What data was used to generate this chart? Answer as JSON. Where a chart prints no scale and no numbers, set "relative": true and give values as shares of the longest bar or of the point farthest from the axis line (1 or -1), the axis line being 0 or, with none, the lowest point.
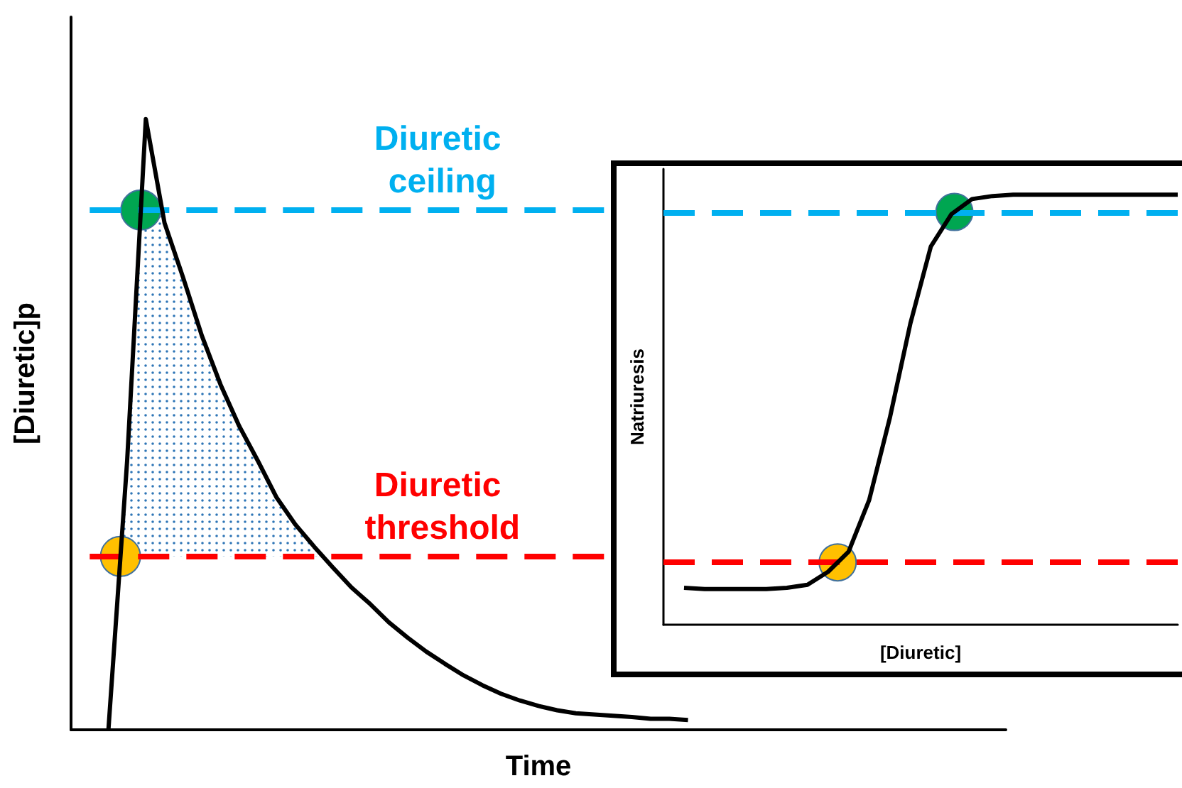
{
  "chart_data": [
    {
      "type": "line",
      "xlabel": "Time",
      "ylabel": "[Diuretic]p",
      "relative": true,
      "grid": false,
      "legend": false,
      "categories": [
        null,
        null,
        null,
        null,
        null,
        null,
        null,
        null,
        null,
        null,
        null,
        null,
        null,
        null,
        null,
        null,
        null,
        null,
        null,
        null,
        null,
        null,
        null,
        null,
        null,
        null,
        null,
        null,
        null,
        null,
        null,
        null,
        null,
        null,
        null,
        null,
        null,
        null,
        null,
        null,
        null,
        null,
        null,
        null,
        null,
        null,
        null,
        null,
        null,
        null,
        null
      ],
      "series": [
        {
          "color": "#000000",
          "values": [
            null,
            null,
            0,
            0.44,
            1,
            0.83,
            0.74,
            0.645,
            0.565,
            0.497,
            0.44,
            0.38,
            0.336,
            0.3,
            0.266,
            0.233,
            0.206,
            0.176,
            0.151,
            0.128,
            0.108,
            0.089,
            0.073,
            0.059,
            0.048,
            0.039,
            0.032,
            0.027,
            0.025,
            0.023,
            0.021,
            0.018,
            0.018,
            0.016,
            null,
            null,
            null,
            null,
            null,
            null,
            null,
            null,
            null,
            null,
            null,
            null,
            null,
            null,
            null,
            null,
            null
          ]
        }
      ],
      "ref_lines": [
        {
          "axis": "y",
          "value": 0.851,
          "label": "Diuretic ceiling",
          "color": "#00b0f0",
          "line_style": "dashed"
        },
        {
          "axis": "y",
          "value": 0.284,
          "label": "Diuretic threshold",
          "color": "#ff0000",
          "line_style": "dashed"
        }
      ]
    },
    {
      "type": "line",
      "xlabel": "[Diuretic]",
      "ylabel": "Natriuresis",
      "relative": true,
      "grid": false,
      "legend": false,
      "categories": [
        null,
        null,
        null,
        null,
        null,
        null,
        null,
        null,
        null,
        null,
        null,
        null,
        null,
        null,
        null,
        null,
        null,
        null,
        null,
        null,
        null,
        null,
        null,
        null,
        null,
        null
      ],
      "series": [
        {
          "color": "#000000",
          "values": [
            null,
            0.086,
            0.083,
            0.083,
            0.083,
            0.083,
            0.086,
            0.093,
            0.123,
            0.17,
            0.29,
            0.48,
            0.7,
            0.88,
            0.955,
            0.99,
            0.997,
            1,
            1,
            1,
            1,
            1,
            1,
            1,
            1,
            1
          ]
        }
      ],
      "ref_lines": [
        {
          "axis": "y",
          "value": 0.96,
          "color": "#00b0f0",
          "line_style": "dashed"
        },
        {
          "axis": "y",
          "value": 0.145,
          "color": "#ff0000",
          "line_style": "dashed"
        }
      ]
    }
  ]
}
